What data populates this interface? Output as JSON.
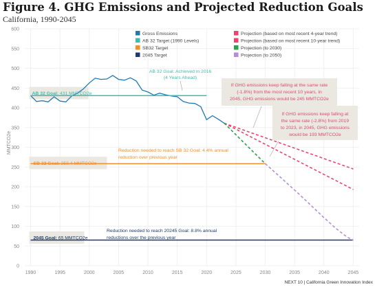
{
  "title": "Figure 4. GHG Emissions and Projected Reduction Goals",
  "subtitle": "California, 1990-2045",
  "footer": "NEXT 10 | California Green Innovation Index",
  "chart_data": {
    "type": "line",
    "ylabel": "MMTCO2e",
    "xlim": [
      1989,
      2046
    ],
    "ylim": [
      0,
      600
    ],
    "xticks": [
      1990,
      1995,
      2000,
      2005,
      2010,
      2015,
      2020,
      2025,
      2030,
      2035,
      2040,
      2045
    ],
    "yticks": [
      0,
      50,
      100,
      150,
      200,
      250,
      300,
      350,
      400,
      450,
      500,
      550,
      600
    ],
    "grid": true,
    "legend_position": "top-right",
    "legend": [
      {
        "label": "Gross Emissions",
        "color": "#1f78b4",
        "symbol": "square"
      },
      {
        "label": "AB 32 Target (1990 Levels)",
        "color": "#3dbdb0",
        "symbol": "square"
      },
      {
        "label": "SB32 Target",
        "color": "#f28e2b",
        "symbol": "square"
      },
      {
        "label": "2045 Target",
        "color": "#1c3a6b",
        "symbol": "square"
      },
      {
        "label": "Projection (based on most recent 4-year trend)",
        "color": "#e8466e",
        "symbol": "square"
      },
      {
        "label": "Projection (based on most recent 10-year trend)",
        "color": "#e8466e",
        "symbol": "square"
      },
      {
        "label": "Projection (to 2030)",
        "color": "#2e9e4f",
        "symbol": "square"
      },
      {
        "label": "Projection (to 2050)",
        "color": "#b48ed0",
        "symbol": "square"
      }
    ],
    "series": [
      {
        "name": "Gross Emissions",
        "color": "#1f78b4",
        "style": "solid",
        "x": [
          1990,
          1991,
          1992,
          1993,
          1994,
          1995,
          1996,
          1997,
          1998,
          1999,
          2000,
          2001,
          2002,
          2003,
          2004,
          2005,
          2006,
          2007,
          2008,
          2009,
          2010,
          2011,
          2012,
          2013,
          2014,
          2015,
          2016,
          2017,
          2018,
          2019,
          2020,
          2021,
          2022,
          2023
        ],
        "y": [
          431,
          416,
          418,
          415,
          428,
          417,
          415,
          430,
          437,
          448,
          463,
          475,
          472,
          473,
          482,
          472,
          470,
          476,
          468,
          445,
          440,
          432,
          437,
          433,
          430,
          428,
          416,
          412,
          411,
          403,
          370,
          380,
          371,
          361
        ]
      },
      {
        "name": "AB 32 Target (1990 Levels)",
        "color": "#3dbdb0",
        "style": "solid",
        "x": [
          1990,
          2020
        ],
        "y": [
          431,
          431
        ]
      },
      {
        "name": "SB32 Target",
        "color": "#f28e2b",
        "style": "solid",
        "x": [
          1990,
          2030
        ],
        "y": [
          258.4,
          258.4
        ]
      },
      {
        "name": "2045 Target",
        "color": "#1c3a6b",
        "style": "solid",
        "x": [
          1990,
          2045
        ],
        "y": [
          65,
          65
        ]
      },
      {
        "name": "Projection (based on most recent 10-year trend)",
        "color": "#e8466e",
        "style": "dashed",
        "x": [
          2023,
          2045
        ],
        "y": [
          361,
          245
        ]
      },
      {
        "name": "Projection (based on most recent 4-year trend)",
        "color": "#e8466e",
        "style": "dashed",
        "x": [
          2023,
          2045
        ],
        "y": [
          361,
          193
        ]
      },
      {
        "name": "Projection (to 2030)",
        "color": "#2e9e4f",
        "style": "dashed",
        "x": [
          2023,
          2030
        ],
        "y": [
          361,
          258.4
        ]
      },
      {
        "name": "Projection (to 2050)",
        "color": "#b48ed0",
        "style": "dashed",
        "x": [
          2030,
          2032,
          2034,
          2036,
          2038,
          2040,
          2042,
          2044,
          2045
        ],
        "y": [
          258.4,
          232,
          205,
          178,
          150,
          122,
          95,
          72,
          65
        ]
      }
    ],
    "annotations": {
      "ab32_achieved": [
        "AB 32 Goal: Achieved in 2016",
        "(4 Years Ahead)"
      ],
      "ab32_goal_label": "AB 32 Goal:",
      "ab32_goal_value": "431 MMTCO2e",
      "sb32_goal_label": "SB 32 Goal:",
      "sb32_goal_value": "258.4 MMTCO2e",
      "sb32_needed_bold": "Reduction needed to reach SB 32 Goal:",
      "sb32_needed_rest": "4.4% annual",
      "sb32_needed_line2": "reduction over previous year",
      "goal2045_label": "2045 Goal:",
      "goal2045_value": "65 MMTCO2e",
      "goal2045_needed_line1": "Reduction needed to reach 20245 Goal: 8.8% annual",
      "goal2045_needed_line2": "reductions over the previous year",
      "trend10": [
        "If GHG emissions keep falling at the same rate",
        "(-1.8%) from the most recent 10 years, in",
        "2045, GHG emissions would be 245 MMTCO2e"
      ],
      "trend4": [
        "If GHG emissions keep falling at",
        "the same rate (-2.8%) from 2019",
        "to 2023, in 2045, GHG emissions",
        "would be 193 MMTCO2e"
      ]
    }
  }
}
